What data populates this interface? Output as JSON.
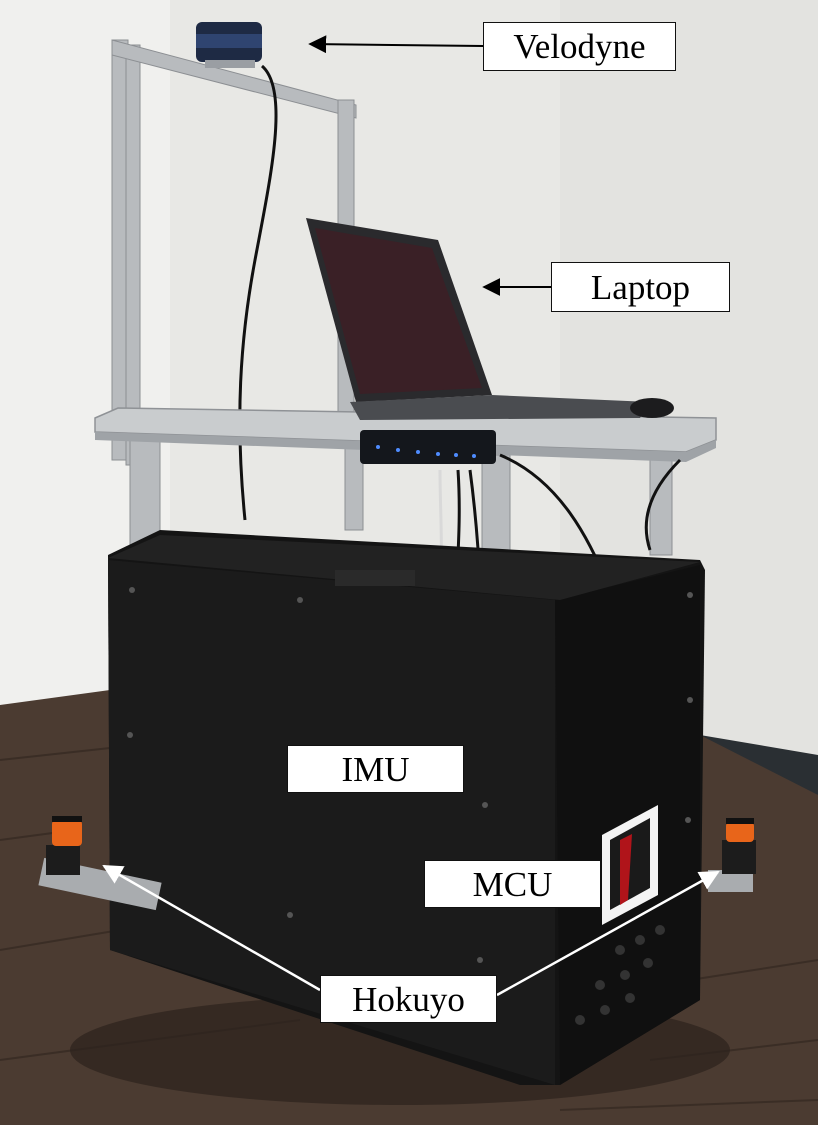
{
  "labels": {
    "velodyne": "Velodyne",
    "laptop": "Laptop",
    "imu": "IMU",
    "mcu": "MCU",
    "hokuyo": "Hokuyo"
  },
  "colors": {
    "wall": "#e9e9e6",
    "floor": "#4a3a30",
    "robot_body": "#151515",
    "frame": "#b9bcbf",
    "lidar_cap": "#e8651a"
  }
}
